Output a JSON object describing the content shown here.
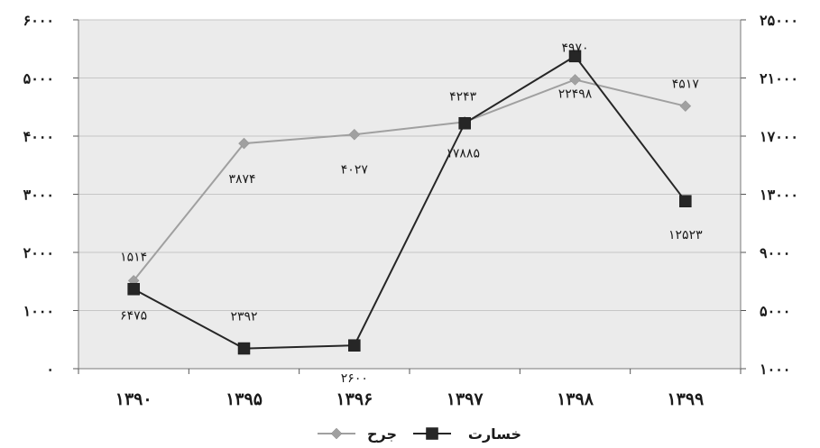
{
  "chart_data": {
    "type": "line",
    "categories": [
      "۱۳۹۰",
      "۱۳۹۵",
      "۱۳۹۶",
      "۱۳۹۷",
      "۱۳۹۸",
      "۱۳۹۹"
    ],
    "left_axis": {
      "min": 0,
      "max": 6000,
      "ticks": [
        0,
        1000,
        2000,
        3000,
        4000,
        5000,
        6000
      ],
      "tick_labels": [
        "۰",
        "۱۰۰۰",
        "۲۰۰۰",
        "۳۰۰۰",
        "۴۰۰۰",
        "۵۰۰۰",
        "۶۰۰۰"
      ]
    },
    "right_axis": {
      "min": 1000,
      "max": 25000,
      "ticks": [
        1000,
        5000,
        9000,
        13000,
        17000,
        21000,
        25000
      ],
      "tick_labels": [
        "۱۰۰۰",
        "۵۰۰۰",
        "۹۰۰۰",
        "۱۳۰۰۰",
        "۱۷۰۰۰",
        "۲۱۰۰۰",
        "۲۵۰۰۰"
      ]
    },
    "series": [
      {
        "name": "جرح",
        "axis": "left",
        "color": "#a0a0a0",
        "marker": "diamond",
        "values": [
          1514,
          3874,
          4027,
          4243,
          4970,
          4517
        ],
        "labels": [
          "۱۵۱۴",
          "۳۸۷۴",
          "۴۰۲۷",
          "۴۲۴۳",
          "۴۹۷۰",
          "۴۵۱۷"
        ]
      },
      {
        "name": "خسارت",
        "axis": "right",
        "color": "#262626",
        "marker": "square",
        "values": [
          6475,
          2392,
          2600,
          17885,
          22498,
          12523
        ],
        "labels": [
          "۶۴۷۵",
          "۲۳۹۲",
          "۲۶۰۰",
          "۱۷۸۸۵",
          "۲۲۴۹۸",
          "۱۲۵۲۳"
        ]
      }
    ],
    "grid": true,
    "legend_position": "bottom",
    "plot_background": "#ebebeb"
  }
}
